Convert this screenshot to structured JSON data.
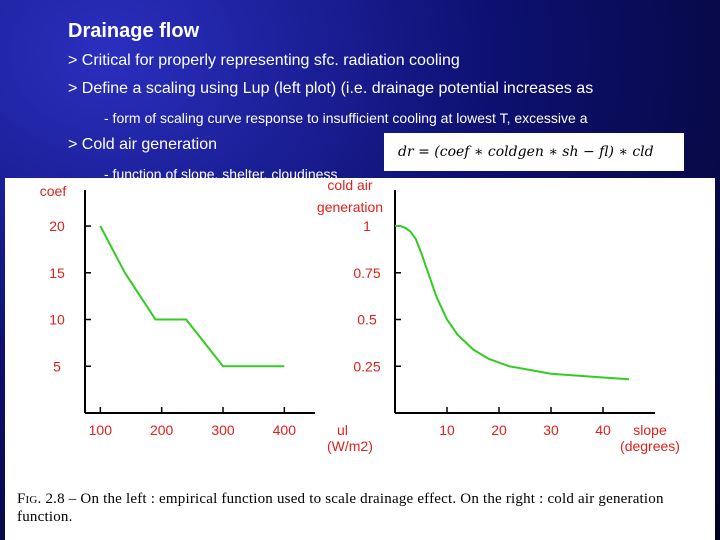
{
  "slide": {
    "title": "Drainage flow",
    "bullets": [
      "> Critical for properly representing sfc. radiation cooling",
      "> Define a scaling using Lup (left plot) (i.e. drainage potential increases as",
      "- form of scaling curve response to insufficient cooling at lowest T, excessive a",
      "> Cold air generation",
      "- function of slope, shelter, cloudiness"
    ],
    "equation": "dr = (coef ∗ coldgen ∗ sh − fl) ∗ cld"
  },
  "caption": {
    "label": "Fig. 2.8",
    "text": " – On the left : empirical function used to scale drainage effect. On the right : cold air generation function."
  },
  "chart_data": [
    {
      "type": "line",
      "title": "",
      "ylabel": "coef",
      "xlabel": "ul (W/m2)",
      "x_ticks": [
        100,
        200,
        300,
        400
      ],
      "y_ticks": [
        5,
        10,
        15,
        20
      ],
      "xlim": [
        75,
        450
      ],
      "ylim": [
        0,
        23
      ],
      "color": "#33cc22",
      "series": [
        {
          "x": [
            100,
            140,
            190,
            240,
            300,
            400
          ],
          "y": [
            20,
            15,
            10,
            10,
            5,
            5
          ]
        }
      ]
    },
    {
      "type": "line",
      "title": "",
      "ylabel": "cold air generation",
      "xlabel": "slope (degrees)",
      "x_ticks": [
        10,
        20,
        30,
        40
      ],
      "y_ticks": [
        0.25,
        0.5,
        0.75,
        1
      ],
      "xlim": [
        0,
        50
      ],
      "ylim": [
        0,
        1.15
      ],
      "color": "#33cc22",
      "series": [
        {
          "x": [
            0,
            1,
            2,
            3,
            4,
            5,
            6,
            8,
            10,
            12,
            15,
            18,
            22,
            26,
            30,
            35,
            40,
            45
          ],
          "y": [
            1.0,
            1.0,
            0.99,
            0.97,
            0.93,
            0.86,
            0.78,
            0.62,
            0.5,
            0.42,
            0.34,
            0.29,
            0.25,
            0.23,
            0.21,
            0.2,
            0.19,
            0.18
          ]
        }
      ]
    }
  ]
}
